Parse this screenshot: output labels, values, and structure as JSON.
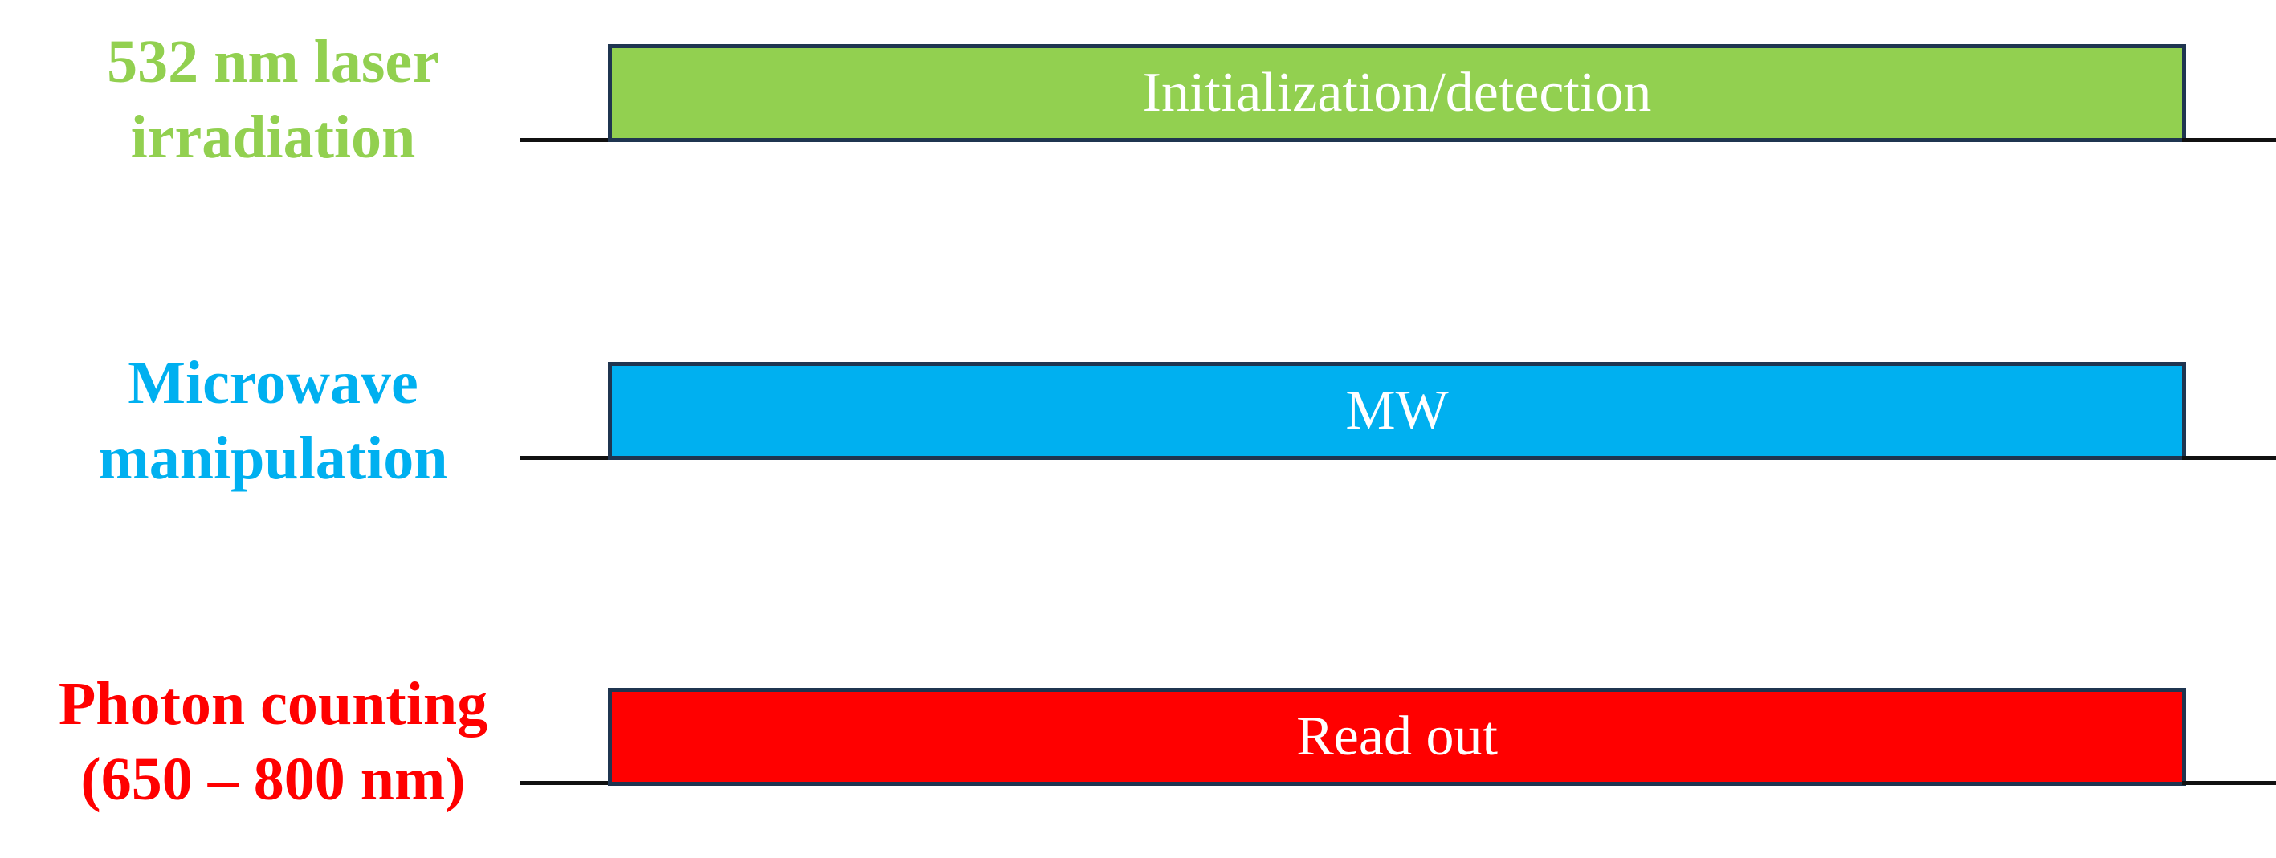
{
  "diagram": {
    "rows": [
      {
        "label_lines": [
          "532 nm laser",
          "irradiation"
        ],
        "pulse_text": "Initialization/detection",
        "color": "#92d050"
      },
      {
        "label_lines": [
          "Microwave",
          "manipulation"
        ],
        "pulse_text": "MW",
        "color": "#00b0f0"
      },
      {
        "label_lines": [
          "Photon counting",
          "(650 – 800 nm)"
        ],
        "pulse_text": "Read out",
        "color": "#ff0000"
      }
    ]
  }
}
